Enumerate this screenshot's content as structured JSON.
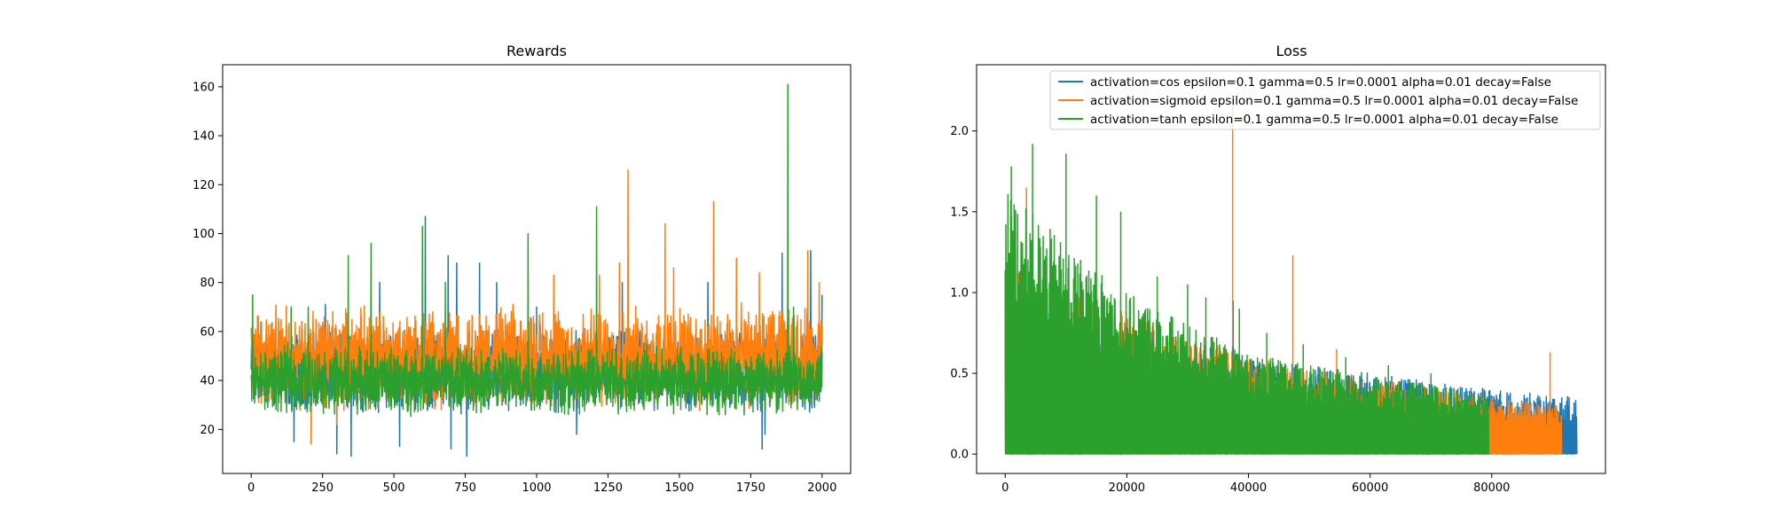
{
  "chart_data": [
    {
      "type": "line",
      "title": "Rewards",
      "xlabel": "",
      "ylabel": "",
      "xlim": [
        -100,
        2100
      ],
      "ylim": [
        2,
        169
      ],
      "xticks": [
        0,
        250,
        500,
        750,
        1000,
        1250,
        1500,
        1750,
        2000
      ],
      "yticks": [
        20,
        40,
        60,
        80,
        100,
        120,
        140,
        160
      ],
      "grid": false,
      "legend": null,
      "series": [
        {
          "color": "#1f77b4",
          "x_range": [
            0,
            2000
          ],
          "typical_band": [
            26,
            62
          ],
          "peaks": [
            {
              "x": 5,
              "y": 60
            },
            {
              "x": 150,
              "y": 15
            },
            {
              "x": 260,
              "y": 71
            },
            {
              "x": 300,
              "y": 10
            },
            {
              "x": 350,
              "y": 9
            },
            {
              "x": 450,
              "y": 80
            },
            {
              "x": 520,
              "y": 13
            },
            {
              "x": 610,
              "y": 107
            },
            {
              "x": 690,
              "y": 91
            },
            {
              "x": 700,
              "y": 12
            },
            {
              "x": 720,
              "y": 88
            },
            {
              "x": 755,
              "y": 9
            },
            {
              "x": 800,
              "y": 88
            },
            {
              "x": 860,
              "y": 80
            },
            {
              "x": 1000,
              "y": 70
            },
            {
              "x": 1140,
              "y": 18
            },
            {
              "x": 1300,
              "y": 80
            },
            {
              "x": 1600,
              "y": 80
            },
            {
              "x": 1790,
              "y": 12
            },
            {
              "x": 1800,
              "y": 18
            },
            {
              "x": 1860,
              "y": 92
            },
            {
              "x": 1960,
              "y": 93
            },
            {
              "x": 2000,
              "y": 75
            }
          ]
        },
        {
          "color": "#ff7f0e",
          "x_range": [
            0,
            2000
          ],
          "typical_band": [
            27,
            72
          ],
          "peaks": [
            {
              "x": 210,
              "y": 14
            },
            {
              "x": 300,
              "y": 22
            },
            {
              "x": 1060,
              "y": 83
            },
            {
              "x": 1220,
              "y": 83
            },
            {
              "x": 1290,
              "y": 88
            },
            {
              "x": 1320,
              "y": 126
            },
            {
              "x": 1450,
              "y": 104
            },
            {
              "x": 1480,
              "y": 86
            },
            {
              "x": 1620,
              "y": 113
            },
            {
              "x": 1700,
              "y": 90
            },
            {
              "x": 1780,
              "y": 84
            },
            {
              "x": 1950,
              "y": 93
            },
            {
              "x": 1990,
              "y": 80
            }
          ]
        },
        {
          "color": "#2ca02c",
          "x_range": [
            0,
            2000
          ],
          "typical_band": [
            25,
            55
          ],
          "peaks": [
            {
              "x": 5,
              "y": 75
            },
            {
              "x": 140,
              "y": 70
            },
            {
              "x": 200,
              "y": 70
            },
            {
              "x": 340,
              "y": 91
            },
            {
              "x": 420,
              "y": 96
            },
            {
              "x": 600,
              "y": 103
            },
            {
              "x": 680,
              "y": 80
            },
            {
              "x": 970,
              "y": 100
            },
            {
              "x": 1210,
              "y": 111
            },
            {
              "x": 1880,
              "y": 161
            },
            {
              "x": 1900,
              "y": 70
            }
          ]
        }
      ]
    },
    {
      "type": "line",
      "title": "Loss",
      "xlabel": "",
      "ylabel": "",
      "xlim": [
        -4700,
        98700
      ],
      "ylim": [
        -0.12,
        2.41
      ],
      "xticks": [
        0,
        20000,
        40000,
        60000,
        80000
      ],
      "yticks": [
        0.0,
        0.5,
        1.0,
        1.5,
        2.0
      ],
      "xtick_labels": [
        "0",
        "20000",
        "40000",
        "60000",
        "80000"
      ],
      "ytick_labels": [
        "0.0",
        "0.5",
        "1.0",
        "1.5",
        "2.0"
      ],
      "grid": false,
      "legend": "top-right",
      "series": [
        {
          "name": "activation=cos epsilon=0.1 gamma=0.5 lr=0.0001 alpha=0.01 decay=False",
          "color": "#1f77b4",
          "x_range": [
            0,
            94000
          ],
          "envelope": [
            [
              0,
              1.0
            ],
            [
              40000,
              0.6
            ],
            [
              80000,
              0.4
            ],
            [
              94000,
              0.35
            ]
          ],
          "peaks": [
            {
              "x": 37500,
              "y": 0.95
            },
            {
              "x": 51000,
              "y": 0.52
            }
          ]
        },
        {
          "name": "activation=sigmoid epsilon=0.1 gamma=0.5 lr=0.0001 alpha=0.01 decay=False",
          "color": "#ff7f0e",
          "x_range": [
            0,
            91500
          ],
          "envelope": [
            [
              0,
              1.15
            ],
            [
              40000,
              0.6
            ],
            [
              80000,
              0.35
            ],
            [
              91500,
              0.3
            ]
          ],
          "peaks": [
            {
              "x": 200,
              "y": 1.15
            },
            {
              "x": 3500,
              "y": 1.65
            },
            {
              "x": 37400,
              "y": 2.22
            },
            {
              "x": 47300,
              "y": 1.23
            },
            {
              "x": 54500,
              "y": 0.65
            },
            {
              "x": 89600,
              "y": 0.63
            }
          ]
        },
        {
          "name": "activation=tanh epsilon=0.1 gamma=0.5 lr=0.0001 alpha=0.01 decay=False",
          "color": "#2ca02c",
          "x_range": [
            0,
            79500
          ],
          "envelope": [
            [
              0,
              1.65
            ],
            [
              10000,
              1.3
            ],
            [
              20000,
              1.0
            ],
            [
              40000,
              0.62
            ],
            [
              60000,
              0.48
            ],
            [
              79500,
              0.38
            ]
          ],
          "peaks": [
            {
              "x": 1000,
              "y": 1.78
            },
            {
              "x": 4500,
              "y": 1.92
            },
            {
              "x": 10000,
              "y": 1.86
            },
            {
              "x": 15000,
              "y": 1.6
            },
            {
              "x": 19000,
              "y": 1.5
            },
            {
              "x": 25000,
              "y": 1.1
            },
            {
              "x": 30000,
              "y": 1.05
            },
            {
              "x": 33000,
              "y": 0.97
            },
            {
              "x": 38500,
              "y": 0.9
            },
            {
              "x": 43000,
              "y": 0.75
            },
            {
              "x": 49000,
              "y": 0.68
            },
            {
              "x": 56000,
              "y": 0.6
            },
            {
              "x": 63000,
              "y": 0.55
            },
            {
              "x": 70000,
              "y": 0.5
            }
          ]
        }
      ]
    }
  ]
}
